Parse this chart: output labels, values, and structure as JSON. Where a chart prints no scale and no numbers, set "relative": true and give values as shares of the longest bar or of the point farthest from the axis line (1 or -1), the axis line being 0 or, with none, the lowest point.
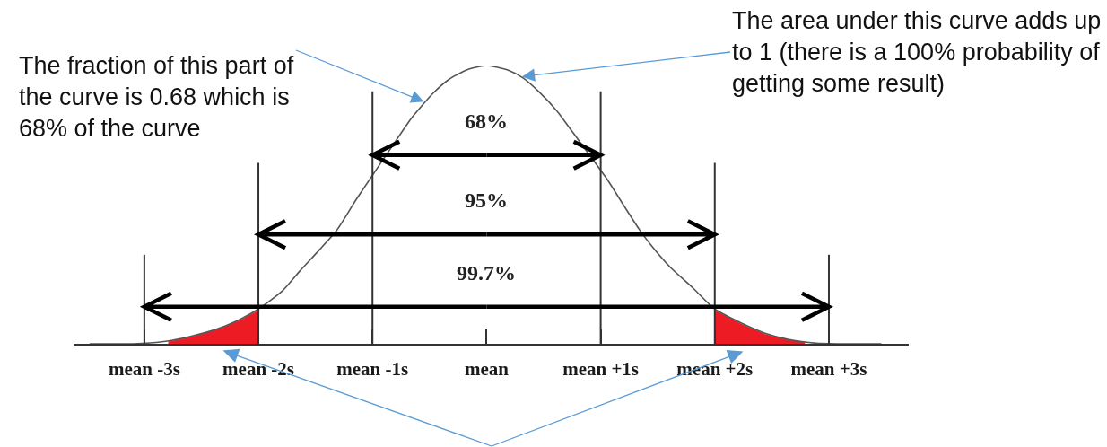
{
  "chart_data": {
    "type": "line",
    "relative": true,
    "xlim": [
      -3.62,
      3.7
    ],
    "xticks": [
      {
        "value": -3,
        "label": "mean -3s"
      },
      {
        "value": -2,
        "label": "mean -2s"
      },
      {
        "value": -1,
        "label": "mean -1s"
      },
      {
        "value": 0,
        "label": "mean"
      },
      {
        "value": 1,
        "label": "mean +1s"
      },
      {
        "value": 2,
        "label": "mean +2s"
      },
      {
        "value": 3,
        "label": "mean +3s"
      }
    ],
    "series": [
      {
        "type": "area",
        "color": "#ed1c24",
        "x": [
          -2.79,
          -2.76,
          -2.58,
          -2.37,
          -2.16,
          -2
        ],
        "values": [
          0.008,
          0.01,
          0.026,
          0.05,
          0.085,
          0.12
        ]
      },
      {
        "type": "area",
        "color": "#ed1c24",
        "x": [
          2,
          2.23,
          2.44,
          2.65,
          2.79
        ],
        "values": [
          0.12,
          0.072,
          0.035,
          0.013,
          0.006
        ]
      },
      {
        "color": "#555555",
        "x": [
          -3.48,
          -3.1,
          -2.95,
          -2.76,
          -2.58,
          -2.37,
          -2.16,
          -2,
          -1.79,
          -1.64,
          -1.46,
          -1.31,
          -1.14,
          -0.72,
          -0.66,
          -0.47,
          -0.33,
          -0.17,
          0,
          0.19,
          0.32,
          0.46,
          0.62,
          0.72,
          1.05,
          1.19,
          1.34,
          1.45,
          1.61,
          1.81,
          2,
          2.23,
          2.44,
          2.65,
          2.89,
          3.08,
          3.46
        ],
        "values": [
          0,
          0,
          0.003,
          0.012,
          0.028,
          0.052,
          0.088,
          0.125,
          0.19,
          0.26,
          0.34,
          0.41,
          0.52,
          0.775,
          0.81,
          0.9,
          0.95,
          0.985,
          1,
          0.983,
          0.955,
          0.905,
          0.835,
          0.78,
          0.595,
          0.505,
          0.41,
          0.35,
          0.275,
          0.2,
          0.125,
          0.075,
          0.038,
          0.015,
          0.002,
          0,
          0
        ]
      }
    ],
    "ref_lines": [
      {
        "axis": "x",
        "value": -1,
        "color": "#333333"
      },
      {
        "axis": "x",
        "value": 1,
        "color": "#333333"
      },
      {
        "axis": "x",
        "value": -2,
        "color": "#333333"
      },
      {
        "axis": "x",
        "value": 2,
        "color": "#333333"
      },
      {
        "axis": "x",
        "value": -3,
        "color": "#333333"
      },
      {
        "axis": "x",
        "value": 3,
        "color": "#333333"
      }
    ],
    "annotations": [
      {
        "text": "The fraction of this part of\nthe curve is 0.68 which is\n68% of the curve",
        "x": -0.55,
        "y": 0.87
      },
      {
        "text": "The area under this curve adds up\nto 1 (there is a 100% probability of\ngetting some result)",
        "x": 0.31,
        "y": 0.96
      },
      "68%",
      "95%",
      "99.7%"
    ]
  }
}
